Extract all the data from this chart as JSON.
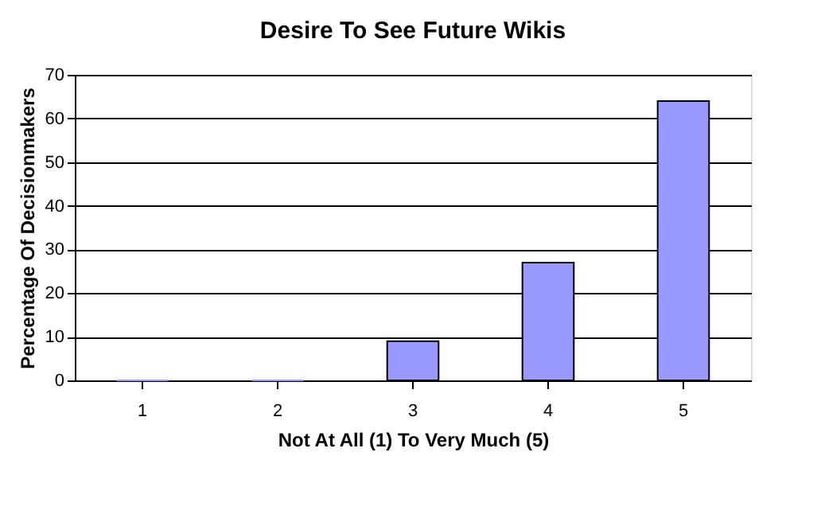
{
  "chart_data": {
    "type": "bar",
    "title": "Desire To See Future Wikis",
    "xlabel": "Not At All (1) To Very Much (5)",
    "ylabel": "Percentage Of Decisionmakers",
    "categories": [
      "1",
      "2",
      "3",
      "4",
      "5"
    ],
    "values": [
      0,
      0,
      9,
      27,
      64
    ],
    "color": "#9999ff",
    "ylim": [
      0,
      70
    ],
    "yticks": [
      0,
      10,
      20,
      30,
      40,
      50,
      60,
      70
    ],
    "grid": "y"
  }
}
